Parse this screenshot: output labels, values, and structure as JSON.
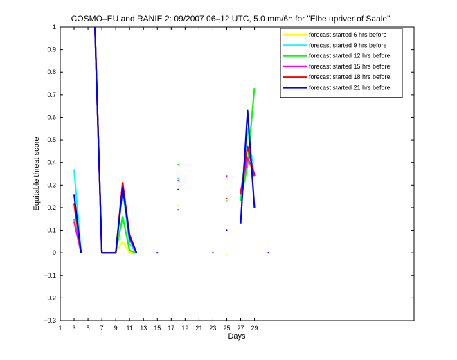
{
  "chart_data": {
    "type": "line",
    "title": "COSMO–EU and RANIE 2: 09/2007 06–12 UTC, 5.0 mm/6h for \"Elbe upriver of Saale\"",
    "xlabel": "Days",
    "ylabel": "Equitable threat score",
    "xlim": [
      1,
      52
    ],
    "ylim": [
      -0.3,
      1
    ],
    "xticks": [
      1,
      3,
      5,
      7,
      9,
      11,
      13,
      15,
      17,
      19,
      21,
      23,
      25,
      27,
      29
    ],
    "yticks": [
      -0.3,
      -0.2,
      -0.1,
      0,
      0.1,
      0.2,
      0.3,
      0.4,
      0.5,
      0.6,
      0.7,
      0.8,
      0.9,
      1
    ],
    "ytick_labels": [
      "−0.3",
      "−0.2",
      "−0.1",
      "0",
      "0.1",
      "0.2",
      "0.3",
      "0.4",
      "0.5",
      "0.6",
      "0.7",
      "0.8",
      "0.9",
      "1"
    ],
    "legend_position": "top-right",
    "grid": false,
    "series": [
      {
        "name": "forecast started 6 hrs before",
        "color": "#ffff00",
        "values": [
          [
            3,
            0.14
          ],
          [
            4,
            0
          ],
          [
            5,
            null
          ],
          [
            6,
            1
          ],
          [
            7,
            0
          ],
          [
            8,
            0
          ],
          [
            9,
            0
          ],
          [
            10,
            0.05
          ],
          [
            11,
            0
          ],
          [
            12,
            0
          ],
          [
            13,
            null
          ],
          [
            14,
            null
          ],
          [
            15,
            null
          ],
          [
            16,
            null
          ],
          [
            17,
            null
          ],
          [
            18,
            0.21
          ],
          [
            19,
            null
          ],
          [
            20,
            null
          ],
          [
            21,
            null
          ],
          [
            22,
            null
          ],
          [
            23,
            null
          ],
          [
            24,
            null
          ],
          [
            25,
            -0.01
          ],
          [
            26,
            null
          ],
          [
            27,
            0.26
          ],
          [
            28,
            0.42
          ],
          [
            29,
            0.34
          ]
        ]
      },
      {
        "name": "forecast started 9 hrs before",
        "color": "#00ffff",
        "values": [
          [
            3,
            0.37
          ],
          [
            4,
            0
          ],
          [
            5,
            null
          ],
          [
            6,
            1
          ],
          [
            7,
            0
          ],
          [
            8,
            0
          ],
          [
            9,
            0
          ],
          [
            10,
            0.28
          ],
          [
            11,
            0.04
          ],
          [
            12,
            0
          ],
          [
            13,
            null
          ],
          [
            14,
            null
          ],
          [
            15,
            null
          ],
          [
            16,
            null
          ],
          [
            17,
            null
          ],
          [
            18,
            0.33
          ],
          [
            19,
            null
          ],
          [
            20,
            null
          ],
          [
            21,
            null
          ],
          [
            22,
            null
          ],
          [
            23,
            null
          ],
          [
            24,
            null
          ],
          [
            25,
            0.1
          ],
          [
            26,
            null
          ],
          [
            27,
            0.23
          ],
          [
            28,
            0.55
          ],
          [
            29,
            0.34
          ]
        ]
      },
      {
        "name": "forecast started 12 hrs before",
        "color": "#00ff00",
        "values": [
          [
            3,
            0.15
          ],
          [
            4,
            0
          ],
          [
            5,
            null
          ],
          [
            6,
            1
          ],
          [
            7,
            0
          ],
          [
            8,
            0
          ],
          [
            9,
            0
          ],
          [
            10,
            0.16
          ],
          [
            11,
            0.01
          ],
          [
            12,
            0
          ],
          [
            13,
            null
          ],
          [
            14,
            null
          ],
          [
            15,
            null
          ],
          [
            16,
            null
          ],
          [
            17,
            null
          ],
          [
            18,
            0.39
          ],
          [
            19,
            null
          ],
          [
            20,
            null
          ],
          [
            21,
            null
          ],
          [
            22,
            null
          ],
          [
            23,
            null
          ],
          [
            24,
            null
          ],
          [
            25,
            0.23
          ],
          [
            26,
            null
          ],
          [
            27,
            0.23
          ],
          [
            28,
            0.39
          ],
          [
            29,
            0.73
          ]
        ]
      },
      {
        "name": "forecast started 15 hrs before",
        "color": "#ff00ff",
        "values": [
          [
            3,
            0.14
          ],
          [
            4,
            0
          ],
          [
            5,
            null
          ],
          [
            6,
            1
          ],
          [
            7,
            0
          ],
          [
            8,
            0
          ],
          [
            9,
            0
          ],
          [
            10,
            0.31
          ],
          [
            11,
            0.06
          ],
          [
            12,
            0
          ],
          [
            13,
            null
          ],
          [
            14,
            null
          ],
          [
            15,
            null
          ],
          [
            16,
            null
          ],
          [
            17,
            null
          ],
          [
            18,
            0.32
          ],
          [
            19,
            null
          ],
          [
            20,
            null
          ],
          [
            21,
            null
          ],
          [
            22,
            null
          ],
          [
            23,
            null
          ],
          [
            24,
            null
          ],
          [
            25,
            0.34
          ],
          [
            26,
            null
          ],
          [
            27,
            0.27
          ],
          [
            28,
            0.42
          ],
          [
            29,
            0.35
          ]
        ]
      },
      {
        "name": "forecast started 18 hrs before",
        "color": "#ff0000",
        "values": [
          [
            3,
            0.22
          ],
          [
            4,
            0
          ],
          [
            5,
            null
          ],
          [
            6,
            1
          ],
          [
            7,
            0
          ],
          [
            8,
            0
          ],
          [
            9,
            0
          ],
          [
            10,
            0.31
          ],
          [
            11,
            0.08
          ],
          [
            12,
            0
          ],
          [
            13,
            null
          ],
          [
            14,
            null
          ],
          [
            15,
            null
          ],
          [
            16,
            null
          ],
          [
            17,
            null
          ],
          [
            18,
            0.19
          ],
          [
            19,
            null
          ],
          [
            20,
            null
          ],
          [
            21,
            null
          ],
          [
            22,
            null
          ],
          [
            23,
            null
          ],
          [
            24,
            null
          ],
          [
            25,
            0.24
          ],
          [
            26,
            null
          ],
          [
            27,
            0.26
          ],
          [
            28,
            0.47
          ],
          [
            29,
            0.34
          ]
        ]
      },
      {
        "name": "forecast started 21 hrs before",
        "color": "#0000ff",
        "values": [
          [
            3,
            0.26
          ],
          [
            4,
            0
          ],
          [
            5,
            null
          ],
          [
            6,
            1
          ],
          [
            7,
            0
          ],
          [
            8,
            0
          ],
          [
            9,
            0
          ],
          [
            10,
            0.29
          ],
          [
            11,
            0.07
          ],
          [
            12,
            0
          ],
          [
            13,
            null
          ],
          [
            14,
            null
          ],
          [
            15,
            0
          ],
          [
            16,
            null
          ],
          [
            17,
            null
          ],
          [
            18,
            0.28
          ],
          [
            19,
            null
          ],
          [
            20,
            null
          ],
          [
            21,
            null
          ],
          [
            22,
            null
          ],
          [
            23,
            0
          ],
          [
            24,
            null
          ],
          [
            25,
            0.1
          ],
          [
            26,
            null
          ],
          [
            27,
            0.13
          ],
          [
            28,
            0.63
          ],
          [
            29,
            0.2
          ],
          [
            30,
            null
          ],
          [
            31,
            0
          ]
        ]
      }
    ]
  }
}
